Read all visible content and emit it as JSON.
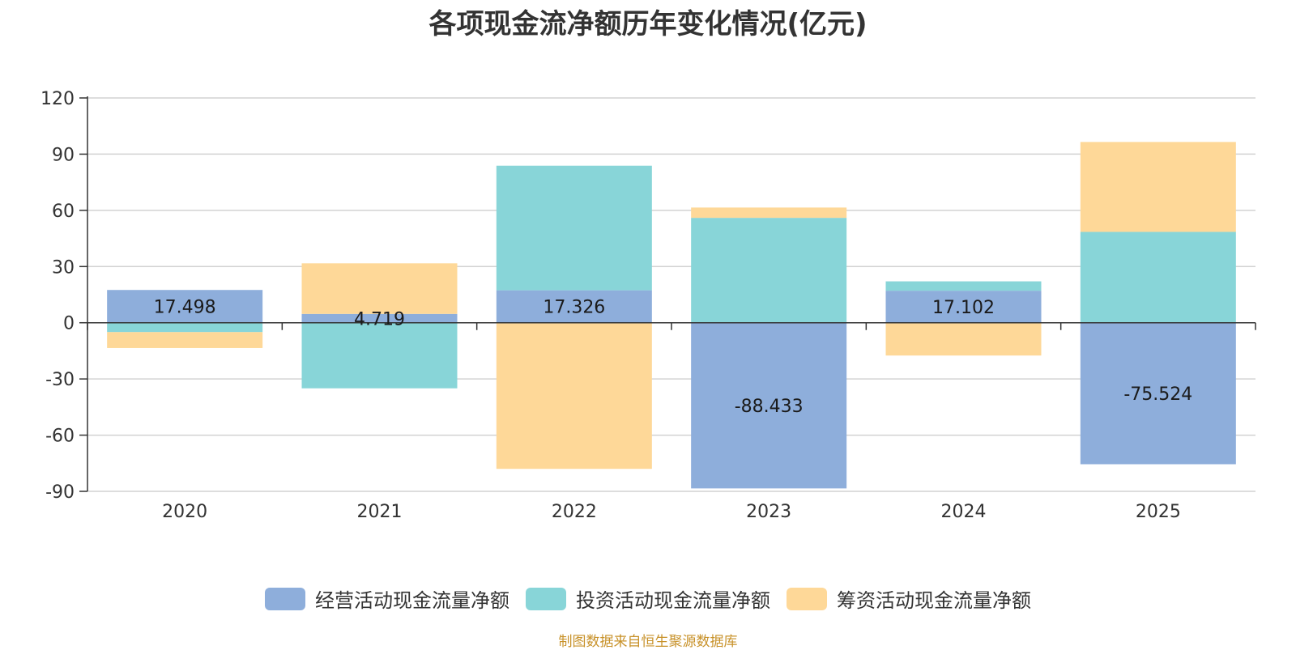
{
  "chart_data": {
    "type": "bar",
    "stacked": true,
    "title": "各项现金流净额历年变化情况(亿元)",
    "categories": [
      "2020",
      "2021",
      "2022",
      "2023",
      "2024",
      "2025"
    ],
    "ylim": [
      -90,
      120
    ],
    "yticks": [
      "120",
      "90",
      "60",
      "30",
      "0",
      "-30",
      "-60",
      "-90"
    ],
    "ytick_values": [
      120,
      90,
      60,
      30,
      0,
      -30,
      -60,
      -90
    ],
    "grid": true,
    "legend_position": "bottom",
    "series": [
      {
        "name": "经营活动现金流量净额",
        "color": "#8eaedb",
        "values": [
          17.498,
          4.719,
          17.326,
          -88.433,
          17.102,
          -75.524
        ],
        "labels": [
          "17.498",
          "4.719",
          "17.326",
          "-88.433",
          "17.102",
          "-75.524"
        ]
      },
      {
        "name": "投资活动现金流量净额",
        "color": "#88d5d8",
        "values": [
          -5.0,
          -35.0,
          66.5,
          56.0,
          5.0,
          48.5
        ]
      },
      {
        "name": "筹资活动现金流量净额",
        "color": "#fed898",
        "values": [
          -8.5,
          27.0,
          -78.0,
          5.5,
          -17.5,
          48.0
        ]
      }
    ]
  },
  "source": "制图数据来自恒生聚源数据库"
}
